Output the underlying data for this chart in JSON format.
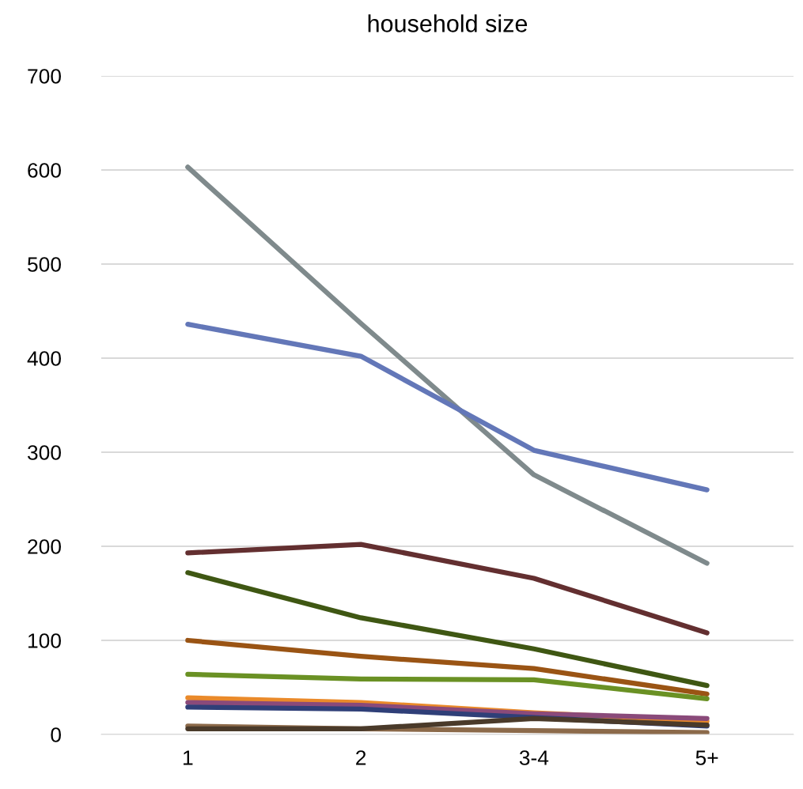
{
  "chart_data": {
    "type": "line",
    "title": "household size",
    "categories": [
      "1",
      "2",
      "3-4",
      "5+"
    ],
    "series": [
      {
        "color": "#7f8a8c",
        "values": [
          603,
          437,
          276,
          182
        ]
      },
      {
        "color": "#6377b8",
        "values": [
          436,
          402,
          302,
          260
        ]
      },
      {
        "color": "#632f30",
        "values": [
          193,
          202,
          166,
          108
        ]
      },
      {
        "color": "#3f5713",
        "values": [
          172,
          124,
          91,
          52
        ]
      },
      {
        "color": "#9a5414",
        "values": [
          100,
          83,
          70,
          43
        ]
      },
      {
        "color": "#6a9124",
        "values": [
          64,
          59,
          58,
          38
        ]
      },
      {
        "color": "#ea8a2a",
        "values": [
          39,
          34,
          23,
          14
        ]
      },
      {
        "color": "#8a4a7a",
        "values": [
          34,
          31,
          22,
          17
        ]
      },
      {
        "color": "#2f3f78",
        "values": [
          29,
          27,
          18,
          9
        ]
      },
      {
        "color": "#8c6a4a",
        "values": [
          9,
          6,
          4,
          2
        ]
      },
      {
        "color": "#4a3a2a",
        "values": [
          6,
          6,
          17,
          10
        ]
      }
    ],
    "ylim": [
      0,
      700
    ],
    "yticks": [
      0,
      100,
      200,
      300,
      400,
      500,
      600,
      700
    ],
    "grid": "y",
    "legend": false,
    "marker": "none",
    "line_style": "solid"
  }
}
